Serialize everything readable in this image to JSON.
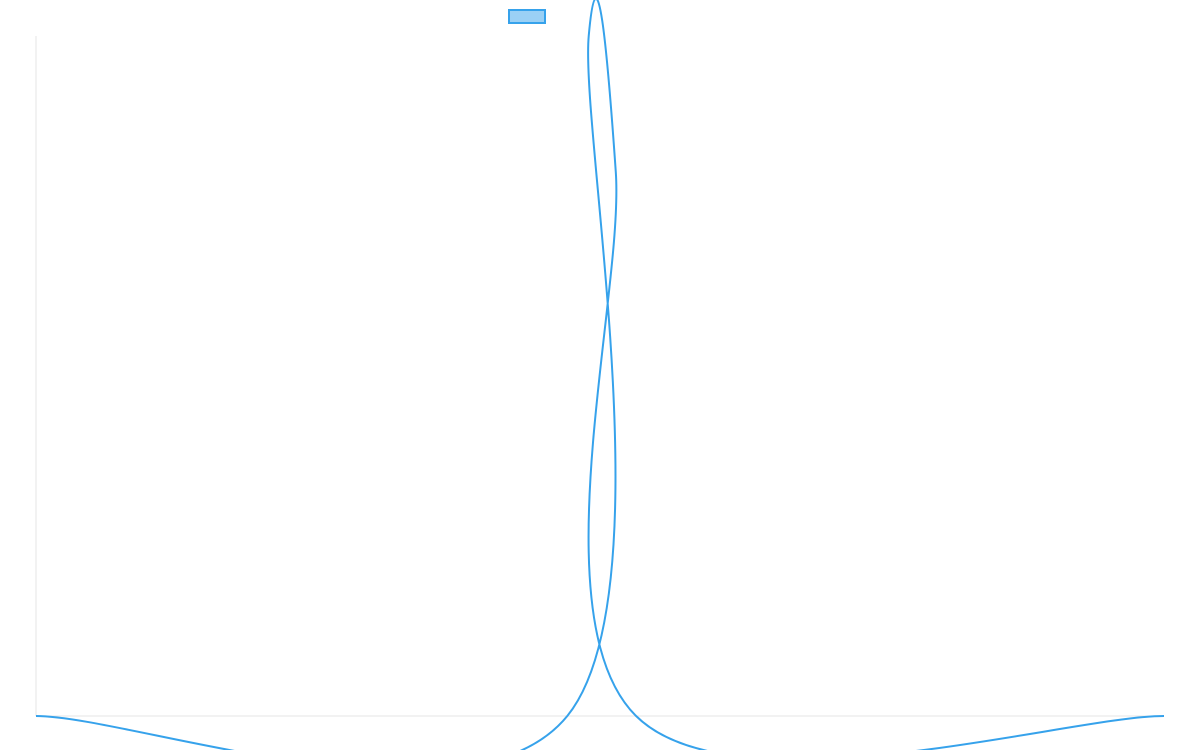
{
  "chart_data": {
    "type": "line",
    "title": "",
    "xlabel": "",
    "ylabel": "",
    "grid": false,
    "legend": {
      "placement": "top-center"
    },
    "colors": {
      "line": "#36a2eb",
      "legend_fill": "#9ad0f5",
      "axis": "#e5e5e5"
    },
    "xlim": [
      0,
      100
    ],
    "ylim": [
      0,
      1
    ],
    "series": [
      {
        "label": "",
        "x": [
          0,
          47.1,
          49.0,
          51.4,
          53.2,
          100
        ],
        "values": [
          0,
          0,
          1,
          0.8,
          0,
          0
        ]
      }
    ]
  }
}
